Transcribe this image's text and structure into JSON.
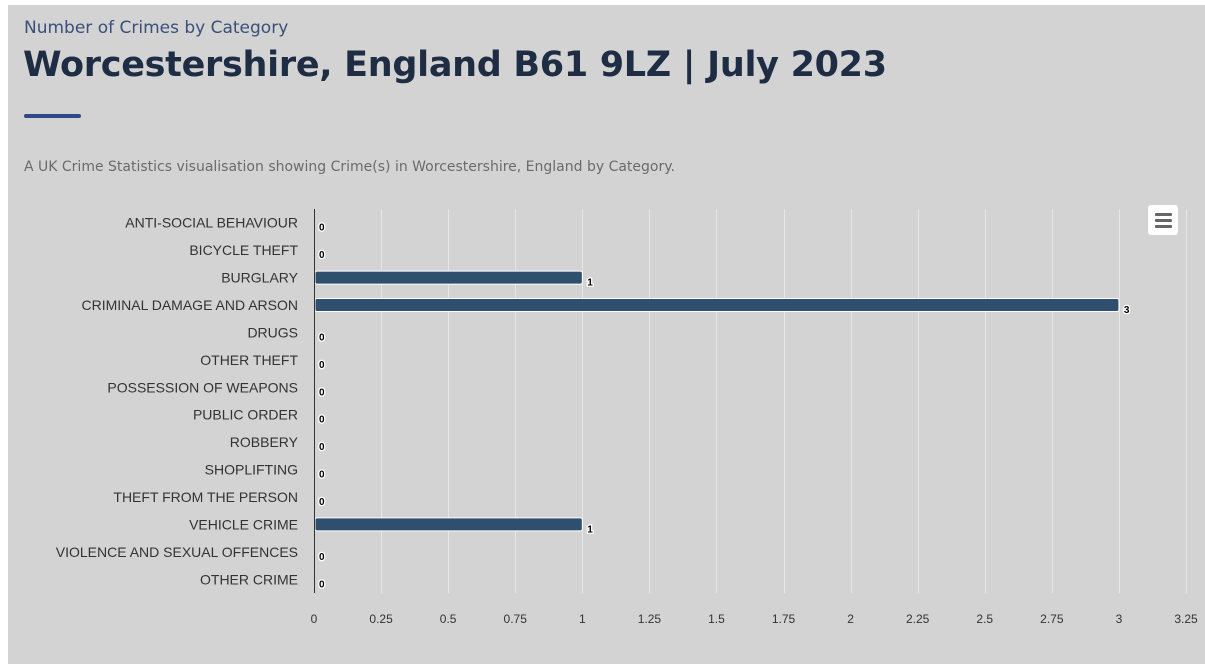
{
  "header": {
    "eyebrow": "Number of Crimes by Category",
    "title": "Worcestershire, England B61 9LZ | July 2023",
    "description": "A UK Crime Statistics visualisation showing Crime(s) in Worcestershire, England by Category."
  },
  "chart_data": {
    "type": "bar",
    "orientation": "horizontal",
    "categories": [
      "ANTI-SOCIAL BEHAVIOUR",
      "BICYCLE THEFT",
      "BURGLARY",
      "CRIMINAL DAMAGE AND ARSON",
      "DRUGS",
      "OTHER THEFT",
      "POSSESSION OF WEAPONS",
      "PUBLIC ORDER",
      "ROBBERY",
      "SHOPLIFTING",
      "THEFT FROM THE PERSON",
      "VEHICLE CRIME",
      "VIOLENCE AND SEXUAL OFFENCES",
      "OTHER CRIME"
    ],
    "values": [
      0,
      0,
      1,
      3,
      0,
      0,
      0,
      0,
      0,
      0,
      0,
      1,
      0,
      0
    ],
    "data_labels": true,
    "xlim": [
      0,
      3.25
    ],
    "ticks": [
      0,
      0.25,
      0.5,
      0.75,
      1,
      1.25,
      1.5,
      1.75,
      2,
      2.25,
      2.5,
      2.75,
      3,
      3.25
    ],
    "tick_labels": [
      "0",
      "0.25",
      "0.5",
      "0.75",
      "1",
      "1.25",
      "1.5",
      "1.75",
      "2",
      "2.25",
      "2.5",
      "2.75",
      "3",
      "3.25"
    ],
    "grid": "vertical",
    "bar_color": "#2f4f6f",
    "grid_color": "#e6e6e6",
    "legend": "none"
  },
  "menu": {
    "icon": "hamburger-menu-icon"
  }
}
